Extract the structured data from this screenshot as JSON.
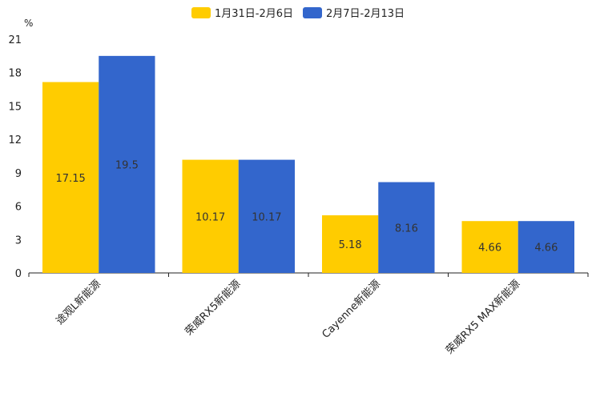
{
  "chart_data": {
    "type": "bar",
    "unit_label": "%",
    "categories": [
      "途观L新能源",
      "荣威RX5新能源",
      "Cayenne新能源",
      "荣威RX5 MAX新能源"
    ],
    "series": [
      {
        "name": "1月31日-2月6日",
        "color": "#FFCC00",
        "values": [
          17.15,
          10.17,
          5.18,
          4.66
        ]
      },
      {
        "name": "2月7日-2月13日",
        "color": "#3366CC",
        "values": [
          19.5,
          10.17,
          8.16,
          4.66
        ]
      }
    ],
    "ylim": [
      0,
      21
    ],
    "yticks": [
      0,
      3,
      6,
      9,
      12,
      15,
      18,
      21
    ],
    "legend_position": "top-center"
  }
}
